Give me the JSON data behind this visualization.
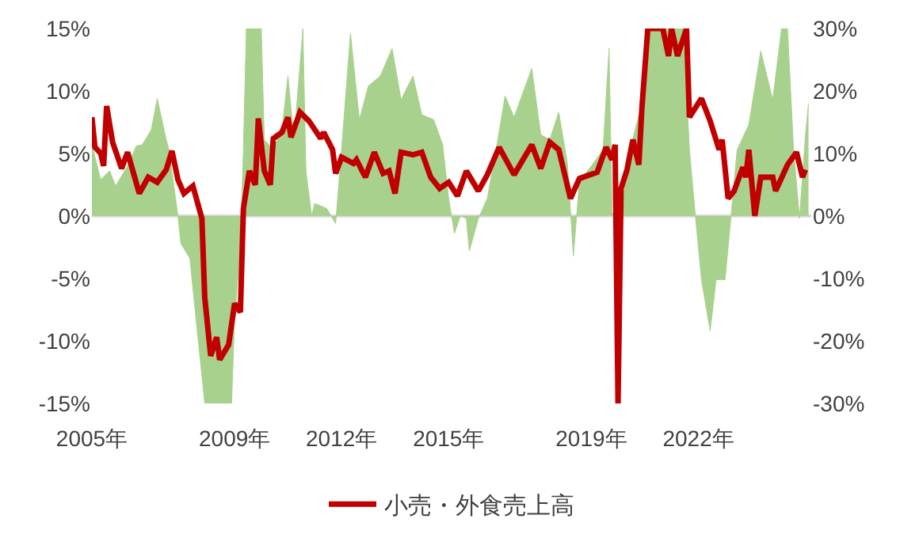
{
  "chart_data": {
    "type": "line",
    "xlim": [
      "2005-01",
      "2025-03"
    ],
    "xticks": [
      {
        "value": "2005-01",
        "label": "2005年"
      },
      {
        "value": "2009-01",
        "label": "2009年"
      },
      {
        "value": "2012-01",
        "label": "2012年"
      },
      {
        "value": "2015-01",
        "label": "2015年"
      },
      {
        "value": "2019-01",
        "label": "2019年"
      },
      {
        "value": "2022-01",
        "label": "2022年"
      }
    ],
    "ylim": [
      -15,
      15
    ],
    "yticks": [
      {
        "value": -15,
        "label": "-15%"
      },
      {
        "value": -10,
        "label": "-10%"
      },
      {
        "value": -5,
        "label": "-5%"
      },
      {
        "value": 0,
        "label": "0%"
      },
      {
        "value": 5,
        "label": "5%"
      },
      {
        "value": 10,
        "label": "10%"
      },
      {
        "value": 15,
        "label": "15%"
      }
    ],
    "y2lim": [
      -30,
      30
    ],
    "y2ticks": [
      {
        "value": -30,
        "label": "-30%"
      },
      {
        "value": -20,
        "label": "-20%"
      },
      {
        "value": -10,
        "label": "-10%"
      },
      {
        "value": 0,
        "label": "0%"
      },
      {
        "value": 10,
        "label": "10%"
      },
      {
        "value": 20,
        "label": "20%"
      },
      {
        "value": 30,
        "label": "30%"
      }
    ],
    "legend": "bottom",
    "series": [
      {
        "type": "area",
        "axis": "y2",
        "color": "#a9d18e",
        "x": [
          "2005-01",
          "2005-04",
          "2005-07",
          "2005-09",
          "2006-01",
          "2006-04",
          "2006-06",
          "2006-09",
          "2006-11",
          "2007-02",
          "2007-03",
          "2007-06",
          "2007-07",
          "2007-10",
          "2007-12",
          "2008-03",
          "2008-12",
          "2009-01",
          "2009-03",
          "2009-04",
          "2009-05",
          "2009-10",
          "2009-11",
          "2010-02",
          "2010-05",
          "2010-07",
          "2010-09",
          "2010-12",
          "2011-01",
          "2011-03",
          "2011-04",
          "2011-08",
          "2011-11",
          "2012-01",
          "2012-04",
          "2012-07",
          "2012-10",
          "2013-02",
          "2013-06",
          "2013-09",
          "2014-01",
          "2014-04",
          "2014-08",
          "2014-11",
          "2015-01",
          "2015-03",
          "2015-05",
          "2015-07",
          "2015-08",
          "2015-11",
          "2016-02",
          "2016-05",
          "2016-08",
          "2016-11",
          "2017-05",
          "2017-08",
          "2017-11",
          "2018-02",
          "2018-05",
          "2018-07",
          "2018-09",
          "2019-01",
          "2019-05",
          "2019-07",
          "2019-08",
          "2019-11",
          "2020-02",
          "2020-06",
          "2020-08",
          "2021-08",
          "2021-10",
          "2021-12",
          "2022-02",
          "2022-05",
          "2022-07",
          "2022-10",
          "2022-12",
          "2023-02",
          "2023-06",
          "2023-10",
          "2024-02",
          "2024-05",
          "2024-07",
          "2024-09",
          "2024-11",
          "2025-01",
          "2025-02"
        ],
        "values": [
          11.4,
          5.8,
          7.2,
          4.8,
          8.0,
          11.2,
          11.4,
          13.8,
          18.8,
          12.2,
          10.6,
          0,
          -4.4,
          -6.8,
          -16.2,
          -30,
          -30,
          -16.2,
          -5.2,
          10.6,
          30,
          30,
          12.2,
          10.6,
          13.8,
          22.4,
          12.2,
          30,
          7.2,
          0,
          2.0,
          1.2,
          -1.2,
          10.6,
          29.2,
          15.4,
          20.8,
          22.4,
          26.8,
          18.6,
          22.4,
          16.2,
          15.4,
          11.4,
          2.8,
          -2.8,
          0,
          -0.4,
          -5.6,
          -0.4,
          2.8,
          10.6,
          19.2,
          15.8,
          23.6,
          13,
          12.2,
          16.6,
          8.4,
          -6.4,
          5.6,
          8.0,
          10.6,
          26.8,
          0.4,
          0.4,
          10.6,
          18,
          30,
          30,
          10.6,
          0,
          -10.2,
          -18.4,
          -10.2,
          -10.2,
          0,
          10.6,
          14.6,
          26.4,
          18.6,
          30,
          30,
          10.6,
          -0.4,
          13,
          18
        ]
      },
      {
        "name": "小売・外食売上高",
        "color": "#c00000",
        "x": [
          "2005-01",
          "2005-02",
          "2005-04",
          "2005-05",
          "2005-06",
          "2005-08",
          "2005-11",
          "2006-01",
          "2006-05",
          "2006-08",
          "2006-11",
          "2007-02",
          "2007-04",
          "2007-06",
          "2007-08",
          "2007-11",
          "2008-02",
          "2008-03",
          "2008-05",
          "2008-07",
          "2008-08",
          "2008-11",
          "2009-01",
          "2009-03",
          "2009-04",
          "2009-06",
          "2009-08",
          "2009-09",
          "2009-11",
          "2010-01",
          "2010-02",
          "2010-05",
          "2010-07",
          "2010-08",
          "2010-11",
          "2011-02",
          "2011-06",
          "2011-07",
          "2011-10",
          "2011-11",
          "2012-01",
          "2012-05",
          "2012-06",
          "2012-09",
          "2012-12",
          "2013-03",
          "2013-05",
          "2013-07",
          "2013-09",
          "2014-01",
          "2014-04",
          "2014-07",
          "2014-10",
          "2015-01",
          "2015-04",
          "2015-07",
          "2015-11",
          "2016-02",
          "2016-06",
          "2016-11",
          "2017-05",
          "2017-08",
          "2017-11",
          "2018-02",
          "2018-06",
          "2018-09",
          "2019-03",
          "2019-06",
          "2019-08",
          "2019-09",
          "2019-10",
          "2019-11",
          "2020-01",
          "2020-03",
          "2020-05",
          "2020-06",
          "2020-08",
          "2020-11",
          "2021-01",
          "2021-03",
          "2021-04",
          "2021-06",
          "2021-09",
          "2021-10",
          "2022-02",
          "2022-05",
          "2022-08",
          "2022-09",
          "2022-11",
          "2023-01",
          "2023-04",
          "2023-05",
          "2023-06",
          "2023-08",
          "2023-10",
          "2024-02",
          "2024-03",
          "2024-07",
          "2024-10",
          "2024-12",
          "2025-01"
        ],
        "values": [
          7.9,
          5.5,
          5.0,
          4.0,
          8.8,
          5.9,
          3.8,
          5.1,
          1.8,
          3.1,
          2.7,
          3.7,
          5.2,
          2.9,
          1.8,
          2.4,
          -0.2,
          -6.5,
          -11.2,
          -9.7,
          -11.5,
          -10.3,
          -7,
          -7.7,
          0.6,
          3.6,
          2.5,
          7.8,
          3.6,
          2.5,
          6.2,
          6.7,
          7.9,
          6.3,
          8.3,
          7.6,
          6.2,
          6.7,
          5.3,
          3.4,
          4.7,
          4.2,
          4.5,
          3.1,
          5.1,
          3.4,
          3.6,
          1.8,
          5.1,
          4.9,
          5.1,
          3.1,
          2.2,
          2.7,
          1.6,
          3.6,
          2.0,
          3.3,
          5.5,
          3.3,
          5.7,
          3.8,
          5.9,
          5.3,
          1.4,
          3.0,
          3.5,
          5.5,
          4.5,
          5.7,
          -15,
          2.2,
          3.7,
          6.1,
          4.1,
          8.6,
          15,
          15,
          15,
          12.8,
          15,
          12.8,
          15,
          7.9,
          9.4,
          7.6,
          5.3,
          6.1,
          1.4,
          2.0,
          3.9,
          3.1,
          5.3,
          0,
          3.1,
          3.1,
          2.0,
          4.1,
          5.1,
          3.1,
          3.7
        ]
      }
    ]
  }
}
